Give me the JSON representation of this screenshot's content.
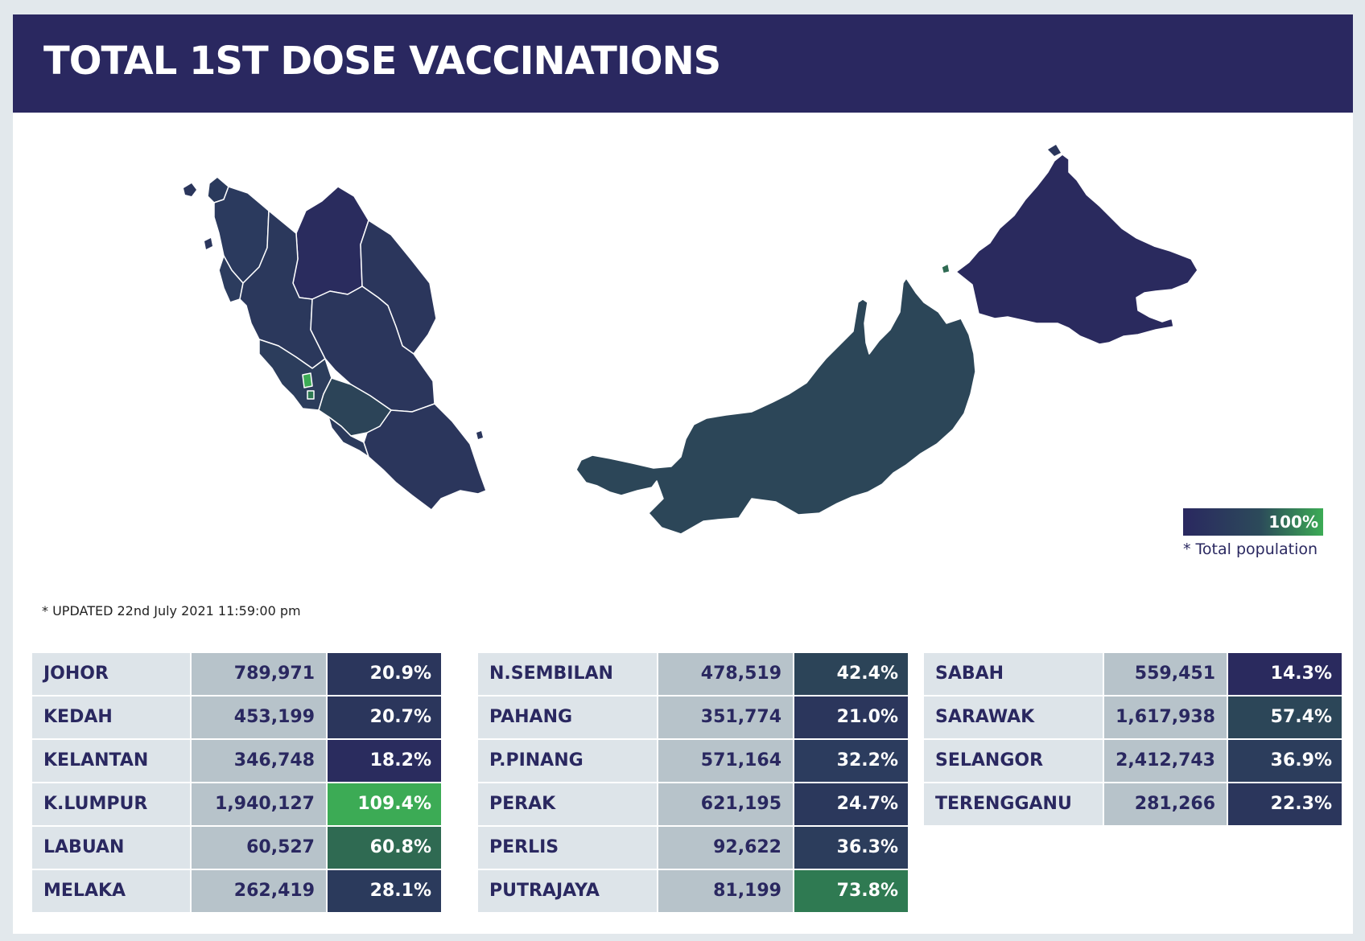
{
  "title": "TOTAL 1ST DOSE VACCINATIONS",
  "legend": {
    "max_label": "100%",
    "note": "* Total population",
    "color_low": "#2a2860",
    "color_high": "#3cab55"
  },
  "updated": "* UPDATED 22nd July 2021 11:59:00 pm",
  "map_regions": [
    {
      "name": "PERLIS",
      "fill": "#2a3a5c"
    },
    {
      "name": "KEDAH",
      "fill": "#2b3a5e"
    },
    {
      "name": "P.PINANG",
      "fill": "#2c3c5e"
    },
    {
      "name": "KELANTAN",
      "fill": "#2a2c5e"
    },
    {
      "name": "TERENGGANU",
      "fill": "#2b365c"
    },
    {
      "name": "PERAK",
      "fill": "#2b385c"
    },
    {
      "name": "PAHANG",
      "fill": "#2b365c"
    },
    {
      "name": "SELANGOR",
      "fill": "#2c3d5c"
    },
    {
      "name": "K.LUMPUR",
      "fill": "#3cab55"
    },
    {
      "name": "PUTRAJAYA",
      "fill": "#2f7a52"
    },
    {
      "name": "N.SEMBILAN",
      "fill": "#2c4458"
    },
    {
      "name": "MELAKA",
      "fill": "#2b3a5c"
    },
    {
      "name": "JOHOR",
      "fill": "#2b365c"
    },
    {
      "name": "SARAWAK",
      "fill": "#2c4658"
    },
    {
      "name": "SABAH",
      "fill": "#2a2a5e"
    },
    {
      "name": "LABUAN",
      "fill": "#2f6a52"
    }
  ],
  "tables": [
    [
      {
        "state": "JOHOR",
        "count": "789,971",
        "pct": "20.9%",
        "color": "#2b365c"
      },
      {
        "state": "KEDAH",
        "count": "453,199",
        "pct": "20.7%",
        "color": "#2b365c"
      },
      {
        "state": "KELANTAN",
        "count": "346,748",
        "pct": "18.2%",
        "color": "#2a2c5e"
      },
      {
        "state": "K.LUMPUR",
        "count": "1,940,127",
        "pct": "109.4%",
        "color": "#3cab55"
      },
      {
        "state": "LABUAN",
        "count": "60,527",
        "pct": "60.8%",
        "color": "#2f6a52"
      },
      {
        "state": "MELAKA",
        "count": "262,419",
        "pct": "28.1%",
        "color": "#2b3a5c"
      }
    ],
    [
      {
        "state": "N.SEMBILAN",
        "count": "478,519",
        "pct": "42.4%",
        "color": "#2c4458"
      },
      {
        "state": "PAHANG",
        "count": "351,774",
        "pct": "21.0%",
        "color": "#2b365c"
      },
      {
        "state": "P.PINANG",
        "count": "571,164",
        "pct": "32.2%",
        "color": "#2c3c5e"
      },
      {
        "state": "PERAK",
        "count": "621,195",
        "pct": "24.7%",
        "color": "#2b385c"
      },
      {
        "state": "PERLIS",
        "count": "92,622",
        "pct": "36.3%",
        "color": "#2c3d5c"
      },
      {
        "state": "PUTRAJAYA",
        "count": "81,199",
        "pct": "73.8%",
        "color": "#2f7a52"
      }
    ],
    [
      {
        "state": "SABAH",
        "count": "559,451",
        "pct": "14.3%",
        "color": "#2a2a5e"
      },
      {
        "state": "SARAWAK",
        "count": "1,617,938",
        "pct": "57.4%",
        "color": "#2c4658"
      },
      {
        "state": "SELANGOR",
        "count": "2,412,743",
        "pct": "36.9%",
        "color": "#2c3d5c"
      },
      {
        "state": "TERENGGANU",
        "count": "281,266",
        "pct": "22.3%",
        "color": "#2b365c"
      }
    ]
  ]
}
